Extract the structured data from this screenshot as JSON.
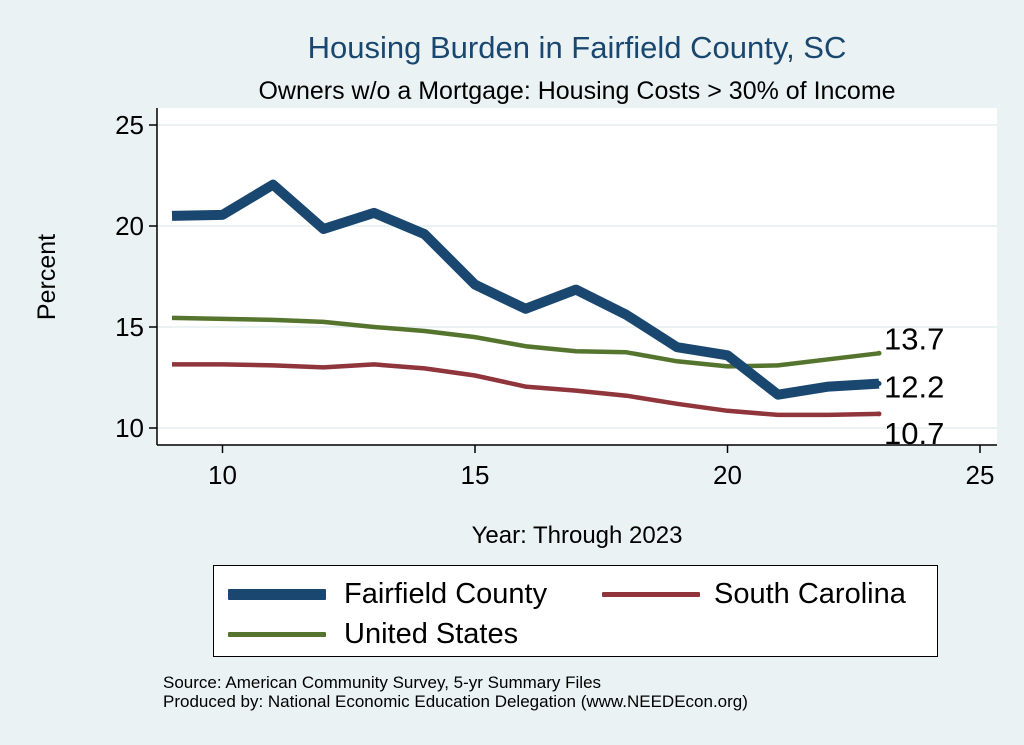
{
  "chart_data": {
    "type": "line",
    "title": "Housing Burden in Fairfield County, SC",
    "subtitle": "Owners w/o a Mortgage: Housing Costs > 30% of Income",
    "xlabel": "Year: Through 2023",
    "ylabel": "Percent",
    "xlim": [
      9,
      25
    ],
    "ylim": [
      10,
      26
    ],
    "xticks": [
      10,
      15,
      20,
      25
    ],
    "yticks": [
      10,
      15,
      20,
      25
    ],
    "grid": "horizontal",
    "legend_position": "bottom",
    "x": [
      9,
      10,
      11,
      12,
      13,
      14,
      15,
      16,
      17,
      18,
      19,
      20,
      21,
      22,
      23
    ],
    "series": [
      {
        "name": "Fairfield County",
        "color": "#1a476f",
        "values": [
          20.5,
          20.55,
          22.05,
          19.85,
          20.65,
          19.6,
          17.1,
          15.9,
          16.85,
          15.6,
          14.0,
          13.6,
          11.65,
          12.05,
          12.2
        ],
        "end_label": "12.2"
      },
      {
        "name": "South Carolina",
        "color": "#90353b",
        "values": [
          13.15,
          13.15,
          13.1,
          13.0,
          13.15,
          12.95,
          12.6,
          12.05,
          11.85,
          11.6,
          11.2,
          10.85,
          10.65,
          10.65,
          10.7
        ],
        "end_label": "10.7"
      },
      {
        "name": "United States",
        "color": "#55752f",
        "values": [
          15.45,
          15.4,
          15.35,
          15.25,
          15.0,
          14.8,
          14.5,
          14.05,
          13.8,
          13.75,
          13.3,
          13.05,
          13.1,
          13.4,
          13.7
        ],
        "end_label": "13.7"
      }
    ]
  },
  "legend": {
    "items": [
      {
        "label": "Fairfield County"
      },
      {
        "label": "South Carolina"
      },
      {
        "label": "United States"
      }
    ]
  },
  "footer": {
    "source": "Source: American Community Survey, 5-yr Summary Files",
    "produced": "Produced by: National Economic Education Delegation (www.NEEDEcon.org)"
  }
}
